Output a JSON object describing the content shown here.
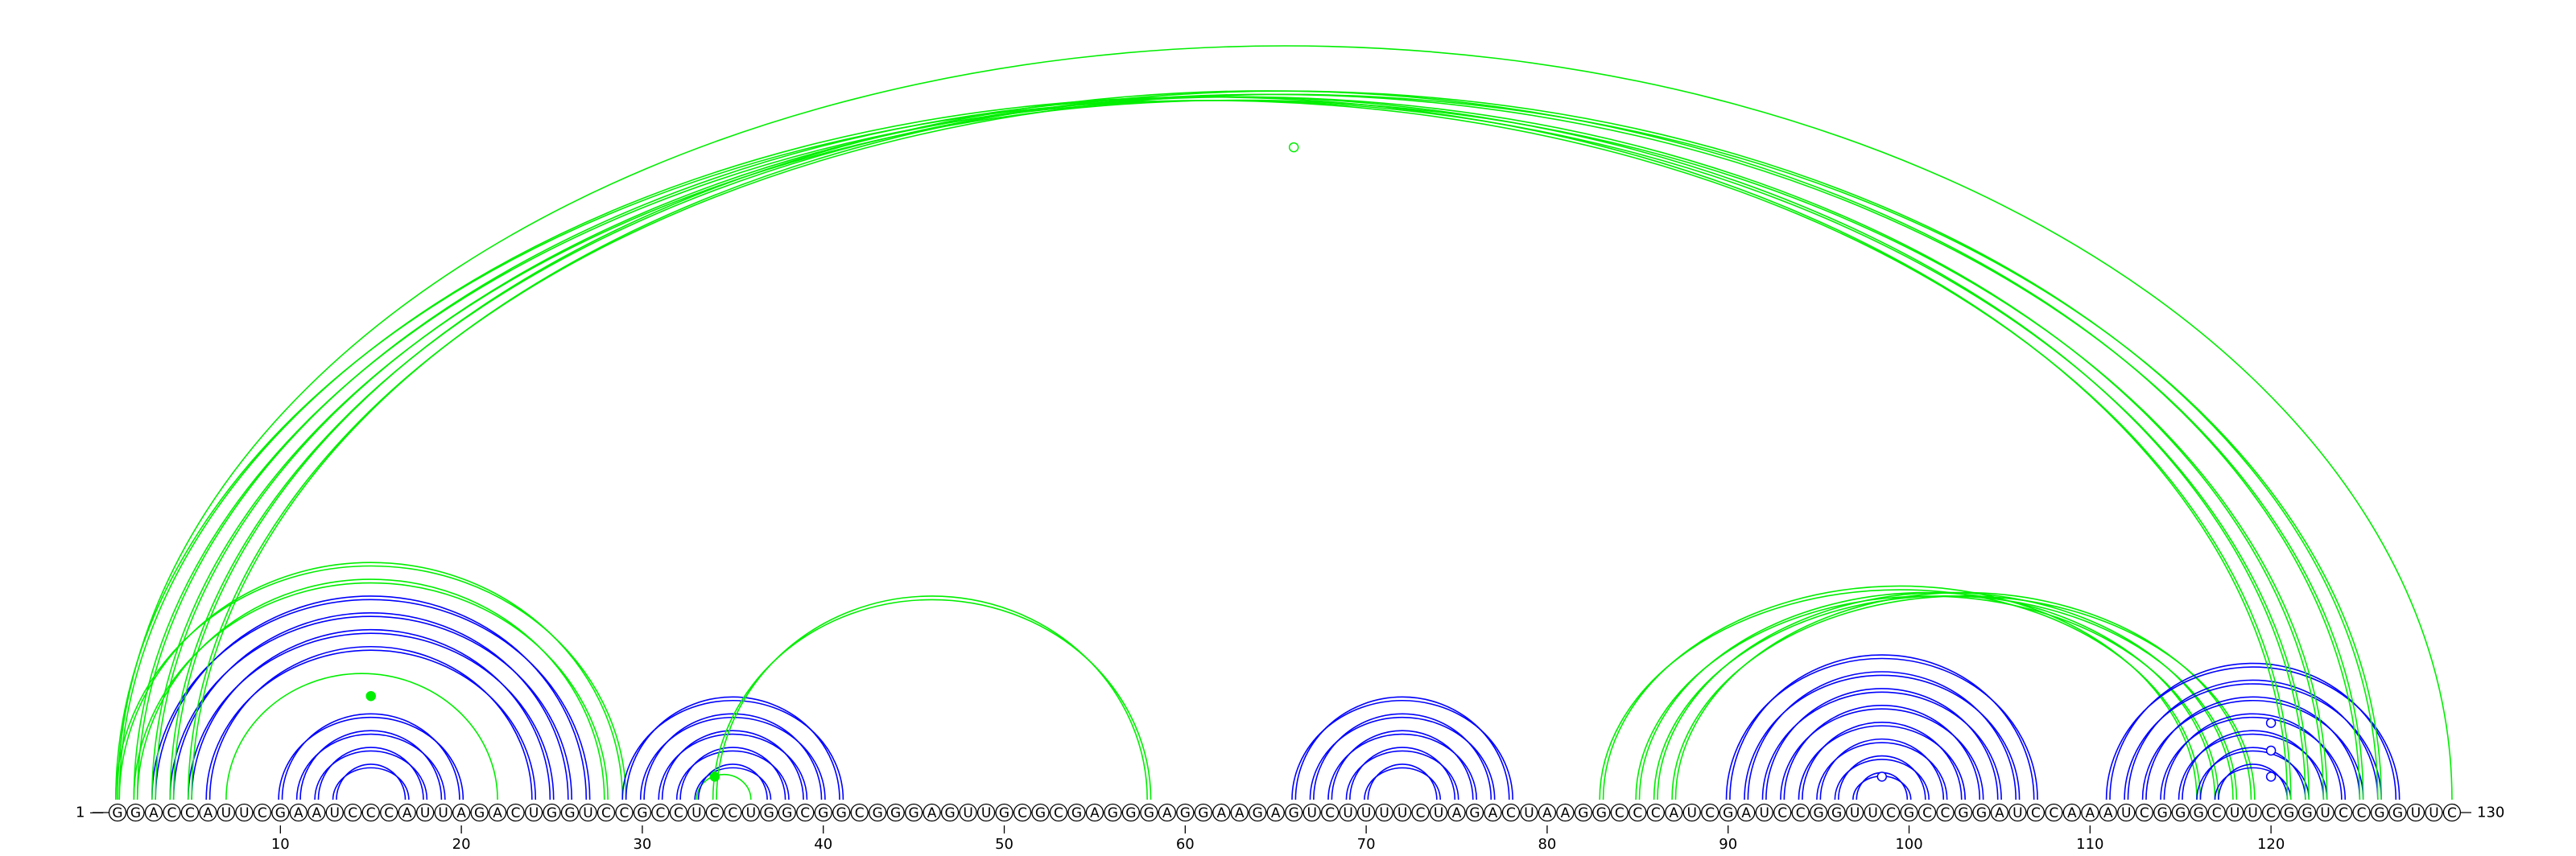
{
  "sequence": "GGACCAUUCGAAUCCCAUUAGACUGGUCCGCCUCCUGGCGGCGGGAGUUGCGCGAGGGAGGAAGAGUCUUUUCUAGACUAAGGCCCAUCGAUCCGGUUCGCCGGAUCCAAAUCGGGCUUCGGUCCGGUUC",
  "length": 130,
  "start_label": "1",
  "end_label": "130",
  "ticks": [
    "10",
    "20",
    "30",
    "40",
    "50",
    "60",
    "70",
    "80",
    "90",
    "100",
    "110",
    "120"
  ],
  "colors": {
    "primary": "#0000ff",
    "secondary": "#00ee00",
    "text": "#000000"
  },
  "arcs": [
    {
      "i": 13,
      "j": 17,
      "color": "blue",
      "strands": 2
    },
    {
      "i": 12,
      "j": 18,
      "color": "blue",
      "strands": 2
    },
    {
      "i": 11,
      "j": 19,
      "color": "blue",
      "strands": 2
    },
    {
      "i": 10,
      "j": 20,
      "color": "blue",
      "strands": 2
    },
    {
      "i": 7,
      "j": 22,
      "color": "green",
      "strands": 1
    },
    {
      "i": 6,
      "j": 24,
      "color": "blue",
      "strands": 2
    },
    {
      "i": 5,
      "j": 25,
      "color": "blue",
      "strands": 2
    },
    {
      "i": 4,
      "j": 26,
      "color": "blue",
      "strands": 2
    },
    {
      "i": 3,
      "j": 27,
      "color": "blue",
      "strands": 2
    },
    {
      "i": 2,
      "j": 28,
      "color": "green",
      "strands": 2
    },
    {
      "i": 1,
      "j": 29,
      "color": "green",
      "strands": 2
    },
    {
      "i": 33,
      "j": 36,
      "color": "green",
      "strands": 1
    },
    {
      "i": 33,
      "j": 37,
      "color": "blue",
      "strands": 2
    },
    {
      "i": 32,
      "j": 38,
      "color": "blue",
      "strands": 2
    },
    {
      "i": 31,
      "j": 39,
      "color": "blue",
      "strands": 2
    },
    {
      "i": 30,
      "j": 40,
      "color": "blue",
      "strands": 2
    },
    {
      "i": 29,
      "j": 41,
      "color": "blue",
      "strands": 2
    },
    {
      "i": 34,
      "j": 58,
      "color": "green",
      "strands": 2
    },
    {
      "i": 70,
      "j": 74,
      "color": "blue",
      "strands": 2
    },
    {
      "i": 69,
      "j": 75,
      "color": "blue",
      "strands": 2
    },
    {
      "i": 68,
      "j": 76,
      "color": "blue",
      "strands": 2
    },
    {
      "i": 67,
      "j": 77,
      "color": "blue",
      "strands": 2
    },
    {
      "i": 66,
      "j": 78,
      "color": "blue",
      "strands": 2
    },
    {
      "i": 97,
      "j": 100,
      "color": "blue",
      "strands": 2
    },
    {
      "i": 96,
      "j": 101,
      "color": "blue",
      "strands": 2
    },
    {
      "i": 95,
      "j": 102,
      "color": "blue",
      "strands": 2
    },
    {
      "i": 94,
      "j": 103,
      "color": "blue",
      "strands": 2
    },
    {
      "i": 93,
      "j": 104,
      "color": "blue",
      "strands": 2
    },
    {
      "i": 92,
      "j": 105,
      "color": "blue",
      "strands": 2
    },
    {
      "i": 91,
      "j": 106,
      "color": "blue",
      "strands": 2
    },
    {
      "i": 90,
      "j": 107,
      "color": "blue",
      "strands": 2
    },
    {
      "i": 83,
      "j": 116,
      "color": "green",
      "strands": 2
    },
    {
      "i": 85,
      "j": 117,
      "color": "green",
      "strands": 2
    },
    {
      "i": 86,
      "j": 118,
      "color": "green",
      "strands": 2
    },
    {
      "i": 87,
      "j": 119,
      "color": "green",
      "strands": 2
    },
    {
      "i": 117,
      "j": 121,
      "color": "blue",
      "strands": 2
    },
    {
      "i": 116,
      "j": 122,
      "color": "blue",
      "strands": 2
    },
    {
      "i": 115,
      "j": 123,
      "color": "blue",
      "strands": 2
    },
    {
      "i": 114,
      "j": 124,
      "color": "blue",
      "strands": 2
    },
    {
      "i": 113,
      "j": 125,
      "color": "blue",
      "strands": 2
    },
    {
      "i": 112,
      "j": 126,
      "color": "blue",
      "strands": 2
    },
    {
      "i": 111,
      "j": 127,
      "color": "blue",
      "strands": 2
    },
    {
      "i": 1,
      "j": 121,
      "color": "green",
      "strands": 2
    },
    {
      "i": 2,
      "j": 122,
      "color": "green",
      "strands": 2
    },
    {
      "i": 3,
      "j": 123,
      "color": "green",
      "strands": 2
    },
    {
      "i": 4,
      "j": 125,
      "color": "green",
      "strands": 2
    },
    {
      "i": 5,
      "j": 126,
      "color": "green",
      "strands": 2
    },
    {
      "i": 1,
      "j": 130,
      "color": "green",
      "strands": 1
    }
  ],
  "markers": [
    {
      "pos": 15,
      "level": 0.135,
      "color": "green",
      "filled": true
    },
    {
      "pos": 34,
      "level": 0.03,
      "color": "green",
      "filled": true
    },
    {
      "pos": 66,
      "level": 0.85,
      "color": "green",
      "filled": false
    },
    {
      "pos": 98.5,
      "level": 0.03,
      "color": "blue",
      "filled": false
    },
    {
      "pos": 120,
      "level": 0.03,
      "color": "blue",
      "filled": false
    },
    {
      "pos": 120,
      "level": 0.064,
      "color": "blue",
      "filled": false
    },
    {
      "pos": 120,
      "level": 0.1,
      "color": "blue",
      "filled": false
    }
  ]
}
